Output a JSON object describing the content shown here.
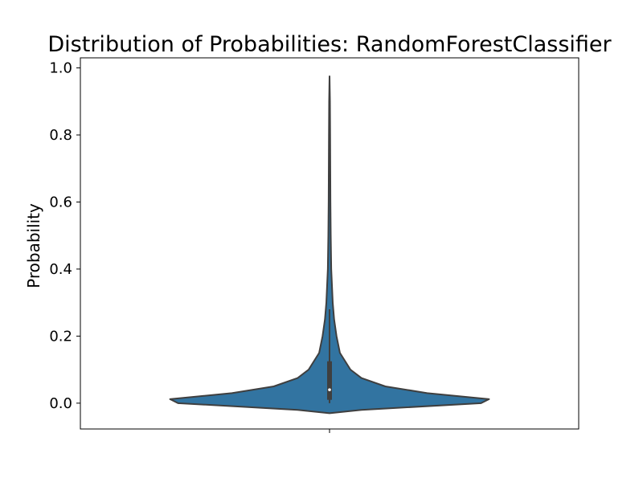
{
  "chart_data": {
    "type": "violin",
    "title": "Distribution of Probabilities: RandomForestClassifier",
    "xlabel": "",
    "ylabel": "Probability",
    "ylim": [
      -0.077,
      1.03
    ],
    "yticks": [
      0.0,
      0.2,
      0.4,
      0.6,
      0.8,
      1.0
    ],
    "ytick_labels": [
      "0.0",
      "0.2",
      "0.4",
      "0.6",
      "0.8",
      "1.0"
    ],
    "grid": false,
    "series": [
      {
        "name": "RandomForestClassifier",
        "color": "#3274a1",
        "edge_color": "#3f3f3f",
        "density_profile": [
          {
            "y": -0.03,
            "half_width": 0.0
          },
          {
            "y": -0.02,
            "half_width": 0.16
          },
          {
            "y": 0.0,
            "half_width": 0.76
          },
          {
            "y": 0.012,
            "half_width": 0.8
          },
          {
            "y": 0.03,
            "half_width": 0.49
          },
          {
            "y": 0.05,
            "half_width": 0.28
          },
          {
            "y": 0.075,
            "half_width": 0.16
          },
          {
            "y": 0.1,
            "half_width": 0.105
          },
          {
            "y": 0.15,
            "half_width": 0.052
          },
          {
            "y": 0.2,
            "half_width": 0.035
          },
          {
            "y": 0.25,
            "half_width": 0.023
          },
          {
            "y": 0.3,
            "half_width": 0.016
          },
          {
            "y": 0.4,
            "half_width": 0.0085
          },
          {
            "y": 0.5,
            "half_width": 0.006
          },
          {
            "y": 0.6,
            "half_width": 0.0045
          },
          {
            "y": 0.8,
            "half_width": 0.003
          },
          {
            "y": 0.9,
            "half_width": 0.002
          },
          {
            "y": 0.975,
            "half_width": 0.0
          }
        ],
        "box": {
          "whisker_low": 0.0,
          "q1": 0.01,
          "median": 0.04,
          "q3": 0.125,
          "whisker_high": 0.28
        }
      }
    ]
  }
}
